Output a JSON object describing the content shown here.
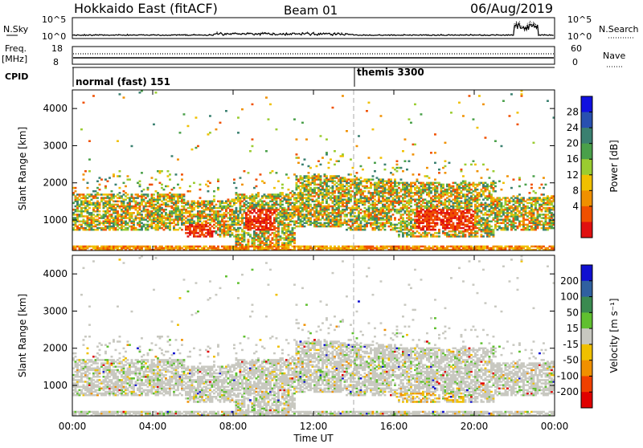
{
  "header": {
    "title": "Hokkaido East (fitACF)",
    "beam": "Beam 01",
    "date": "06/Aug/2019"
  },
  "strip": {
    "nsky_label": "N.Sky",
    "nsky_ticks": [
      "10^5",
      "10^0"
    ],
    "nsearch_label": "N.Search",
    "nsearch_ticks": [
      "10^5",
      "10^0"
    ],
    "freq_label_1": "Freq.",
    "freq_label_2": "[MHz]",
    "freq_ticks": [
      "18",
      "8"
    ],
    "nave_label": "Nave",
    "nave_ticks": [
      "60",
      "0"
    ],
    "cpid_label": "CPID",
    "cpid_segments": [
      {
        "label": "normal (fast) 151",
        "start_hour": 0
      },
      {
        "label": "themis 3300",
        "start_hour": 14
      }
    ]
  },
  "panels": {
    "y_label": "Slant Range [km]",
    "y_ticks": [
      "4000",
      "3000",
      "2000",
      "1000"
    ],
    "x_label": "Time UT",
    "x_ticks": [
      "00:00",
      "04:00",
      "08:00",
      "12:00",
      "16:00",
      "20:00",
      "00:00"
    ],
    "power": {
      "colorbar_label": "Power [dB]",
      "colorbar_ticks": [
        "28",
        "24",
        "20",
        "16",
        "12",
        "8",
        "4"
      ],
      "colors": [
        "#1010e0",
        "#2850b0",
        "#3a8070",
        "#4aa04a",
        "#9acc30",
        "#f0c000",
        "#f09000",
        "#f05000",
        "#e01010"
      ]
    },
    "velocity": {
      "colorbar_label": "Velocity [m s⁻¹]",
      "colorbar_ticks": [
        "200",
        "100",
        "50",
        "15",
        "-15",
        "-50",
        "-100",
        "-200"
      ],
      "colors": [
        "#1010d0",
        "#3060a0",
        "#3a8a50",
        "#60c030",
        "#c8c8c0",
        "#f0c000",
        "#f09000",
        "#f04000",
        "#e00000"
      ]
    }
  },
  "chart_data": {
    "type": "heatmap",
    "title": "Hokkaido East (fitACF)",
    "subtitle": "Beam 01",
    "xlabel": "Time UT",
    "ylabel": "Slant Range [km]",
    "xlim_hours": [
      0,
      24
    ],
    "ylim_km": [
      180,
      4500
    ],
    "x_ticks": [
      "00:00",
      "04:00",
      "08:00",
      "12:00",
      "16:00",
      "20:00",
      "00:00"
    ],
    "y_ticks": [
      1000,
      2000,
      3000,
      4000
    ],
    "mode_change_hour": 14,
    "panels": [
      {
        "name": "Power [dB]",
        "colorbar_range": [
          0,
          30
        ],
        "colorbar_ticks": [
          4,
          8,
          12,
          16,
          20,
          24,
          28
        ]
      },
      {
        "name": "Velocity [m s⁻¹]",
        "colorbar_ticks": [
          200,
          100,
          50,
          15,
          -15,
          -50,
          -100,
          -200
        ]
      }
    ]
  }
}
